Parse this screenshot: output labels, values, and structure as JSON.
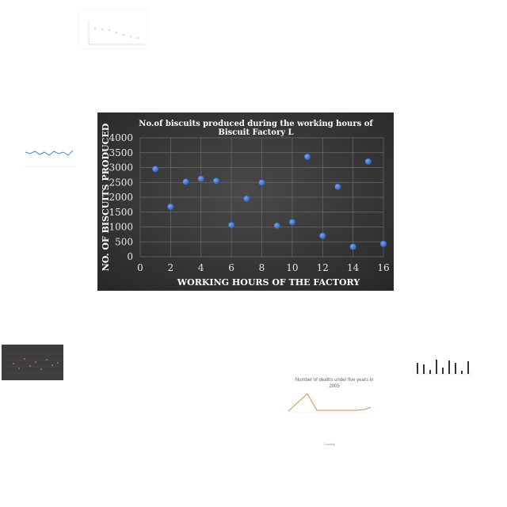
{
  "chart_data": {
    "type": "scatter",
    "title": "No.of biscuits produced during the working hours of Biscuit Factory L",
    "title_lines": [
      "No.of biscuits produced during the working hours of",
      "Biscuit Factory L"
    ],
    "xlabel": "WORKING HOURS OF THE FACTORY",
    "ylabel": "NO. OF BISCUITS PRODUCED",
    "x": [
      1,
      2,
      3,
      4,
      5,
      6,
      7,
      8,
      9,
      10,
      11,
      12,
      13,
      14,
      15,
      16
    ],
    "y": [
      2950,
      1680,
      2520,
      2620,
      2550,
      1060,
      1950,
      2490,
      1040,
      1160,
      3360,
      700,
      2350,
      330,
      3200,
      430
    ],
    "xlim": [
      0,
      16
    ],
    "ylim": [
      0,
      4000
    ],
    "xticks": [
      "0",
      "2",
      "4",
      "6",
      "8",
      "10",
      "12",
      "14",
      "16"
    ],
    "yticks": [
      "0",
      "500",
      "1000",
      "1500",
      "2000",
      "2500",
      "3000",
      "3500",
      "4000"
    ],
    "grid": true,
    "colors": {
      "background": "#3a3a3a",
      "marker": "#4a7bd0",
      "text": "#ffffff"
    }
  },
  "thumbnails": {
    "death_chart": {
      "title_lines": [
        "Number of deaths under five years in",
        "2005"
      ],
      "xlabel": "Country"
    }
  }
}
